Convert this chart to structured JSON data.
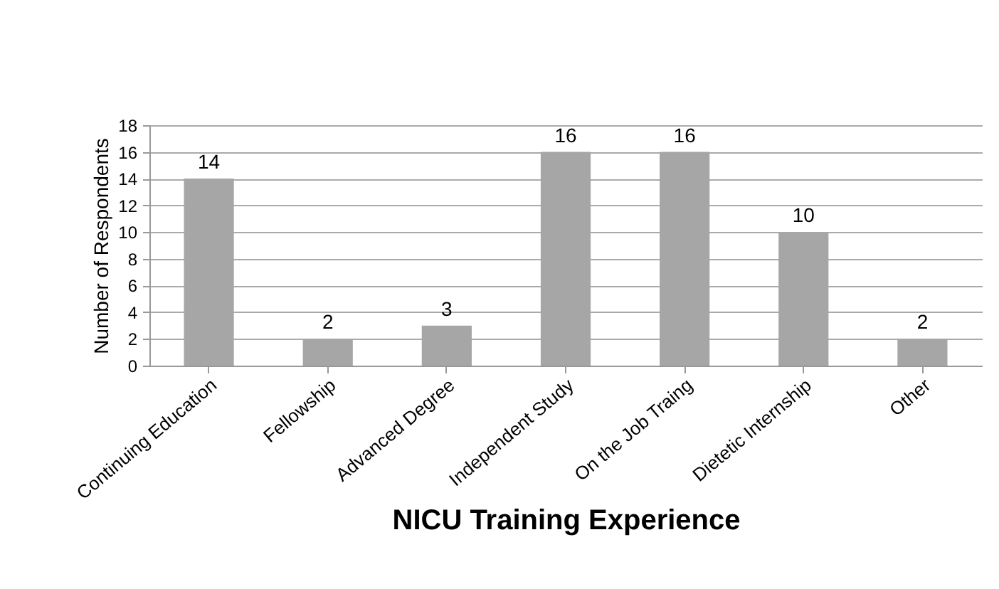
{
  "chart_data": {
    "type": "bar",
    "xlabel": "NICU Training Experience",
    "ylabel": "Number of Respondents",
    "categories": [
      "Continuing Education",
      "Fellowship",
      "Advanced Degree",
      "Independent Study",
      "On the Job Traing",
      "Dietetic Internship",
      "Other"
    ],
    "values": [
      14,
      2,
      3,
      16,
      16,
      10,
      2
    ],
    "color": "#a6a6a6",
    "ylim": [
      0,
      18
    ],
    "yticks": [
      0,
      2,
      4,
      6,
      8,
      10,
      12,
      14,
      16,
      18
    ],
    "grid": "y",
    "data_labels": true
  }
}
